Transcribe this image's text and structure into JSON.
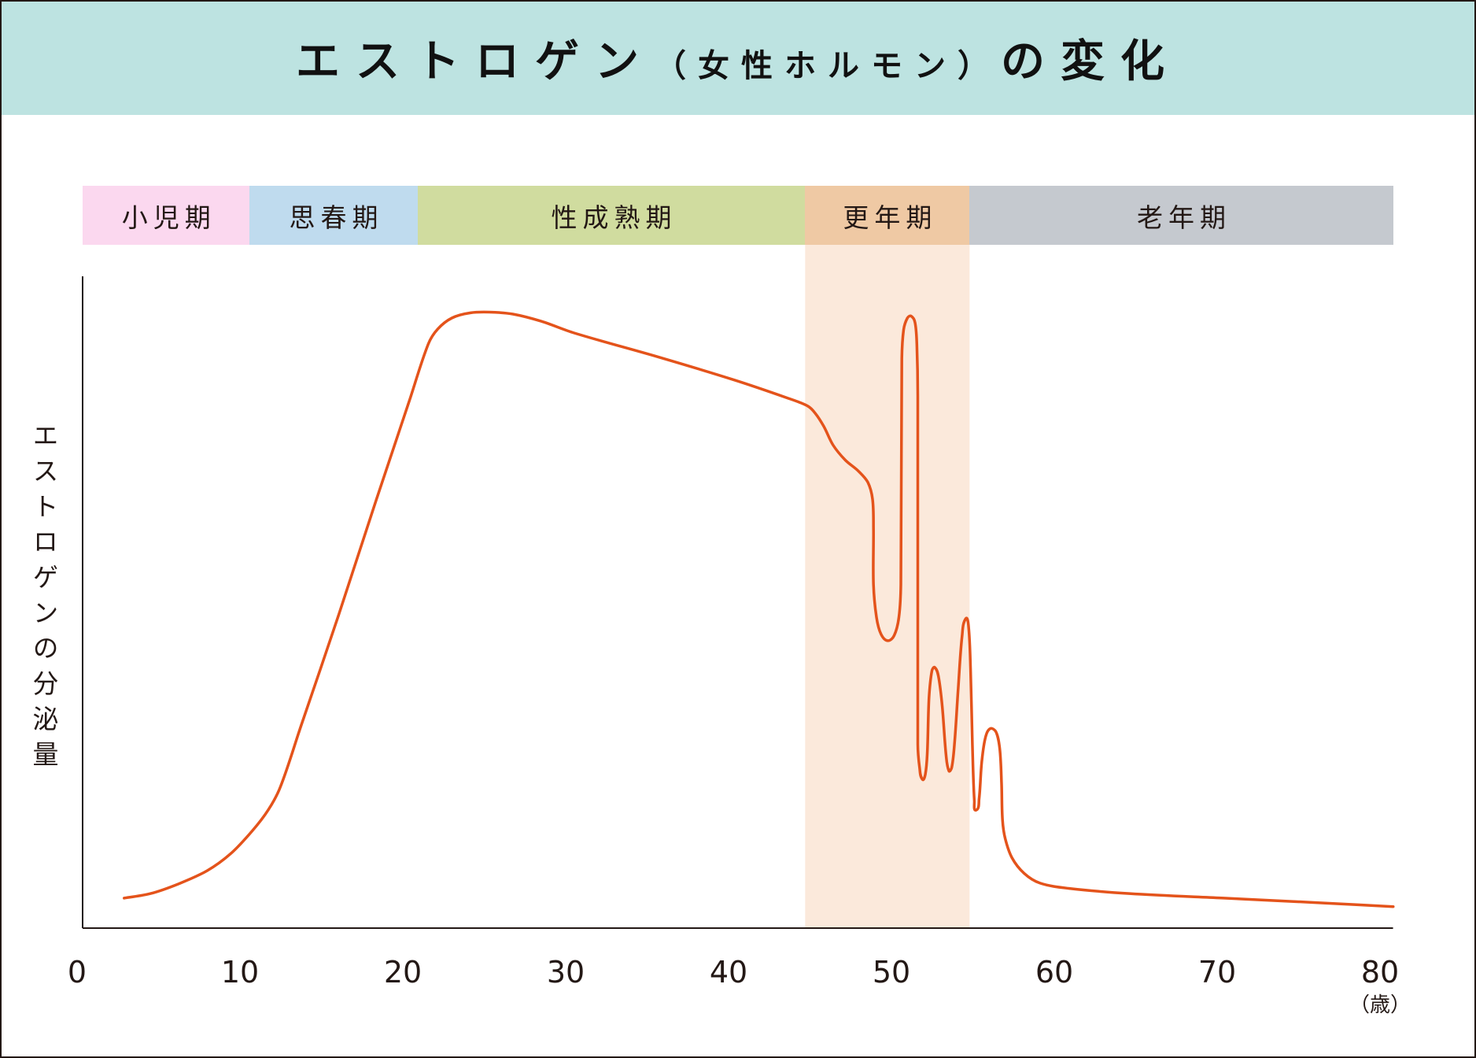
{
  "colors": {
    "header": "#bde3e1",
    "curve": "#e4531b",
    "shade": "#fbe9db",
    "axis": "#231815"
  },
  "chart_data": {
    "type": "line",
    "title": [
      "エストロゲン",
      "（女性ホルモン）",
      "の変化"
    ],
    "xlabel": "（歳）",
    "ylabel": "エストロゲンの分泌量",
    "x_ticks": [
      0,
      10,
      20,
      30,
      40,
      50,
      60,
      70,
      80
    ],
    "xlim": [
      0,
      80.8
    ],
    "ylim": [
      0,
      100
    ],
    "grid": false,
    "stages": [
      {
        "label": "小児期",
        "from": 0,
        "to": 10.6,
        "color": "#fbd8ef"
      },
      {
        "label": "思春期",
        "from": 10.6,
        "to": 20.9,
        "color": "#bfdbee"
      },
      {
        "label": "性成熟期",
        "from": 20.9,
        "to": 44.7,
        "color": "#d0dc9f"
      },
      {
        "label": "更年期",
        "from": 44.7,
        "to": 54.8,
        "color": "#efc9a4"
      },
      {
        "label": "老年期",
        "from": 54.8,
        "to": 80.8,
        "color": "#c5c9cf"
      }
    ],
    "shaded_range": [
      44.7,
      54.8
    ],
    "series": [
      {
        "points": [
          [
            2.89,
            4.6
          ],
          [
            4.51,
            5.3
          ],
          [
            6.24,
            6.8
          ],
          [
            7.98,
            8.8
          ],
          [
            9.42,
            11.4
          ],
          [
            10.75,
            14.9
          ],
          [
            11.73,
            18.1
          ],
          [
            12.49,
            21.7
          ],
          [
            13.76,
            31.1
          ],
          [
            16.07,
            48.1
          ],
          [
            18.38,
            65.8
          ],
          [
            20.4,
            80.9
          ],
          [
            21.56,
            89.6
          ],
          [
            22.14,
            91.9
          ],
          [
            23.01,
            93.6
          ],
          [
            24.16,
            94.4
          ],
          [
            25.32,
            94.5
          ],
          [
            26.76,
            94.2
          ],
          [
            28.5,
            93.1
          ],
          [
            30.52,
            91.3
          ],
          [
            35.72,
            87.6
          ],
          [
            40.35,
            84.1
          ],
          [
            43.53,
            81.4
          ],
          [
            44.86,
            80.1
          ],
          [
            45.32,
            79.0
          ],
          [
            45.84,
            77.0
          ],
          [
            46.42,
            74.1
          ],
          [
            47.17,
            71.8
          ],
          [
            47.98,
            70.1
          ],
          [
            48.55,
            68.4
          ],
          [
            48.84,
            65.8
          ],
          [
            48.9,
            61.4
          ],
          [
            48.9,
            52.7
          ],
          [
            49.08,
            47.7
          ],
          [
            49.36,
            45.1
          ],
          [
            49.77,
            44.1
          ],
          [
            50.17,
            44.9
          ],
          [
            50.46,
            47.7
          ],
          [
            50.58,
            52.7
          ],
          [
            50.64,
            87.4
          ],
          [
            50.75,
            91.8
          ],
          [
            50.98,
            93.6
          ],
          [
            51.21,
            93.9
          ],
          [
            51.45,
            92.9
          ],
          [
            51.56,
            89.6
          ],
          [
            51.62,
            81.6
          ],
          [
            51.62,
            28.2
          ],
          [
            51.73,
            24.6
          ],
          [
            51.91,
            22.8
          ],
          [
            52.08,
            23.6
          ],
          [
            52.2,
            26.7
          ],
          [
            52.31,
            35.4
          ],
          [
            52.49,
            39.5
          ],
          [
            52.66,
            40.0
          ],
          [
            52.89,
            38.6
          ],
          [
            53.12,
            34.0
          ],
          [
            53.35,
            26.7
          ],
          [
            53.53,
            24.1
          ],
          [
            53.7,
            24.6
          ],
          [
            53.87,
            28.2
          ],
          [
            54.1,
            36.8
          ],
          [
            54.34,
            44.8
          ],
          [
            54.57,
            47.5
          ],
          [
            54.74,
            46.2
          ],
          [
            54.86,
            39.7
          ],
          [
            54.97,
            28.2
          ],
          [
            55.09,
            19.5
          ],
          [
            55.2,
            18.1
          ],
          [
            55.38,
            19.8
          ],
          [
            55.55,
            25.6
          ],
          [
            55.78,
            29.3
          ],
          [
            56.07,
            30.6
          ],
          [
            56.42,
            30.1
          ],
          [
            56.65,
            27.5
          ],
          [
            56.76,
            22.4
          ],
          [
            56.82,
            16.6
          ],
          [
            56.99,
            13.7
          ],
          [
            57.4,
            10.8
          ],
          [
            58.15,
            8.4
          ],
          [
            59.13,
            6.9
          ],
          [
            60.87,
            6.1
          ],
          [
            64.62,
            5.3
          ],
          [
            70.4,
            4.6
          ],
          [
            76.18,
            3.9
          ],
          [
            80.81,
            3.3
          ]
        ]
      }
    ]
  }
}
